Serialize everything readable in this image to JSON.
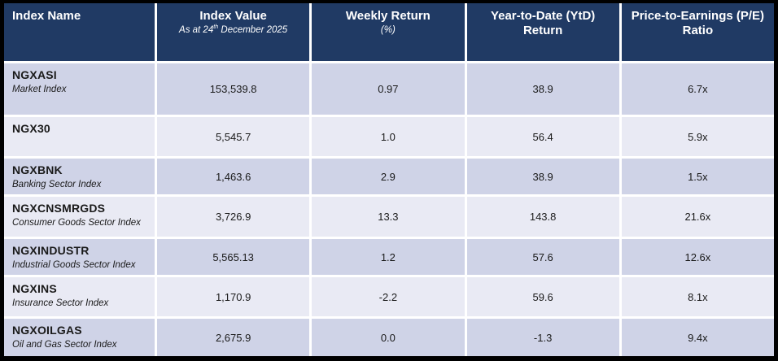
{
  "colors": {
    "frame": "#000000",
    "separator": "#FFFFFF",
    "header_bg": "#203A64",
    "header_text": "#FFFFFF",
    "band_a": "#CFD3E7",
    "band_b": "#E9EAF4",
    "body_text": "#1A1A1A"
  },
  "table": {
    "header": {
      "index_name": "Index Name",
      "index_value": "Index Value",
      "index_value_sub_pre": "As at 24",
      "index_value_sub_sup": "th",
      "index_value_sub_post": " December 2025",
      "weekly_return": "Weekly Return",
      "weekly_return_sub": "(%)",
      "ytd_return": "Year-to-Date (YtD) Return",
      "pe_ratio": "Price-to-Earnings (P/E) Ratio"
    },
    "rows": [
      {
        "name": "NGXASI",
        "desc": "Market Index",
        "value": "153,539.8",
        "weekly": "0.97",
        "ytd": "38.9",
        "pe": "6.7x"
      },
      {
        "name": "NGX30",
        "desc": "",
        "value": "5,545.7",
        "weekly": "1.0",
        "ytd": "56.4",
        "pe": "5.9x"
      },
      {
        "name": "NGXBNK",
        "desc": "Banking Sector Index",
        "value": "1,463.6",
        "weekly": "2.9",
        "ytd": "38.9",
        "pe": "1.5x"
      },
      {
        "name": "NGXCNSMRGDS",
        "desc": "Consumer Goods Sector Index",
        "value": "3,726.9",
        "weekly": "13.3",
        "ytd": "143.8",
        "pe": "21.6x"
      },
      {
        "name": "NGXINDUSTR",
        "desc": "Industrial Goods Sector Index",
        "value": "5,565.13",
        "weekly": "1.2",
        "ytd": "57.6",
        "pe": "12.6x"
      },
      {
        "name": "NGXINS",
        "desc": "Insurance Sector Index",
        "value": "1,170.9",
        "weekly": "-2.2",
        "ytd": "59.6",
        "pe": "8.1x"
      },
      {
        "name": "NGXOILGAS",
        "desc": "Oil and Gas Sector Index",
        "value": "2,675.9",
        "weekly": "0.0",
        "ytd": "-1.3",
        "pe": "9.4x"
      }
    ]
  },
  "chart_data": {
    "type": "table",
    "columns": [
      "Index Name",
      "Index Value (As at 24th December 2025)",
      "Weekly Return (%)",
      "Year-to-Date (YtD) Return",
      "Price-to-Earnings (P/E) Ratio"
    ],
    "rows": [
      [
        "NGXASI (Market Index)",
        153539.8,
        0.97,
        38.9,
        "6.7x"
      ],
      [
        "NGX30",
        5545.7,
        1.0,
        56.4,
        "5.9x"
      ],
      [
        "NGXBNK (Banking Sector Index)",
        1463.6,
        2.9,
        38.9,
        "1.5x"
      ],
      [
        "NGXCNSMRGDS (Consumer Goods Sector Index)",
        3726.9,
        13.3,
        143.8,
        "21.6x"
      ],
      [
        "NGXINDUSTR (Industrial Goods Sector Index)",
        5565.13,
        1.2,
        57.6,
        "12.6x"
      ],
      [
        "NGXINS (Insurance Sector Index)",
        1170.9,
        -2.2,
        59.6,
        "8.1x"
      ],
      [
        "NGXOILGAS (Oil and Gas Sector Index)",
        2675.9,
        0.0,
        -1.3,
        "9.4x"
      ]
    ]
  }
}
